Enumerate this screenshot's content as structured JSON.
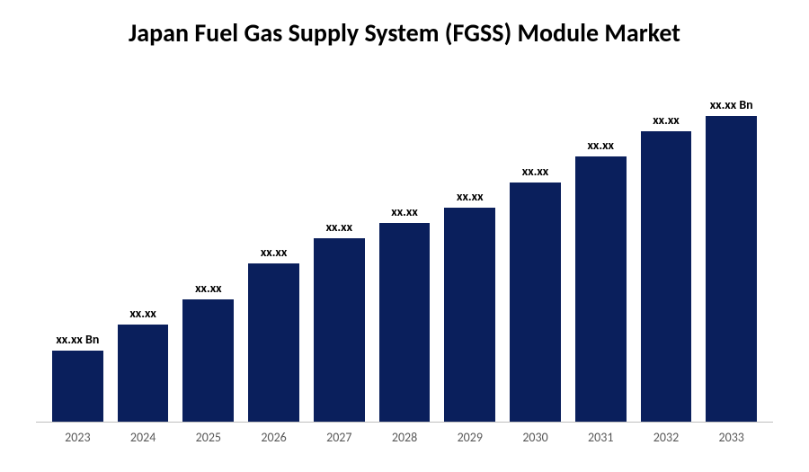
{
  "chart": {
    "type": "bar",
    "title": "Japan Fuel Gas Supply System (FGSS) Module Market",
    "title_fontsize": 28,
    "title_color": "#000000",
    "background_color": "#ffffff",
    "axis_line_color": "#bfbfbf",
    "bar_color": "#0a1f5c",
    "bar_width_ratio": 0.78,
    "label_fontsize": 14,
    "label_color": "#000000",
    "xlabel_fontsize": 14,
    "xlabel_color": "#595959",
    "ylim": [
      0,
      340
    ],
    "bars": [
      {
        "category": "2023",
        "value": 70,
        "label": "xx.xx Bn"
      },
      {
        "category": "2024",
        "value": 95,
        "label": "xx.xx"
      },
      {
        "category": "2025",
        "value": 120,
        "label": "xx.xx"
      },
      {
        "category": "2026",
        "value": 155,
        "label": "xx.xx"
      },
      {
        "category": "2027",
        "value": 180,
        "label": "xx.xx"
      },
      {
        "category": "2028",
        "value": 195,
        "label": "xx.xx"
      },
      {
        "category": "2029",
        "value": 210,
        "label": "xx.xx"
      },
      {
        "category": "2030",
        "value": 235,
        "label": "xx.xx"
      },
      {
        "category": "2031",
        "value": 260,
        "label": "xx.xx"
      },
      {
        "category": "2032",
        "value": 285,
        "label": "xx.xx"
      },
      {
        "category": "2033",
        "value": 300,
        "label": "xx.xx Bn"
      }
    ]
  }
}
